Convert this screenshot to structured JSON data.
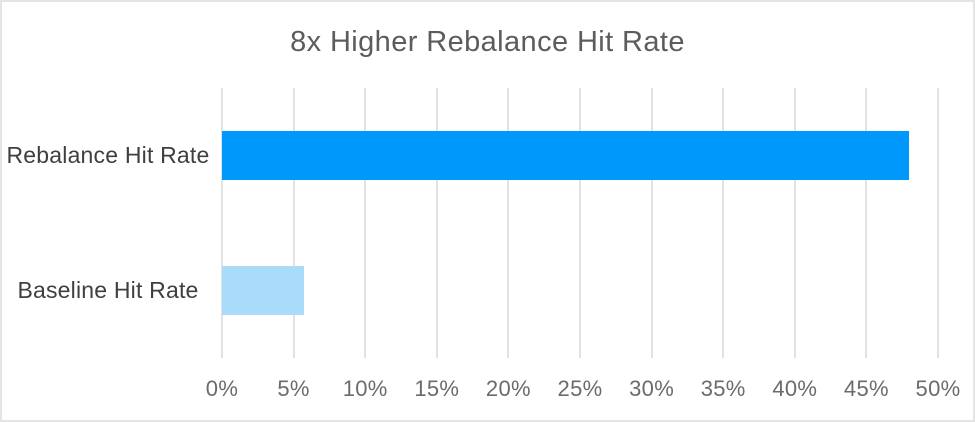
{
  "frame": {
    "background": "#ffffff",
    "border_color": "#e4e4e4"
  },
  "chart_data": {
    "type": "bar",
    "orientation": "horizontal",
    "title": "8x Higher Rebalance Hit Rate",
    "categories": [
      "Rebalance Hit Rate",
      "Baseline Hit Rate"
    ],
    "values": [
      48,
      5.7
    ],
    "value_unit": "%",
    "series_colors": [
      "#0099fb",
      "#a9dbfb"
    ],
    "xlabel": "",
    "ylabel": "",
    "x_min": 0,
    "x_max": 50,
    "x_tick_step": 5,
    "x_tick_labels": [
      "0%",
      "5%",
      "10%",
      "15%",
      "20%",
      "25%",
      "30%",
      "35%",
      "40%",
      "45%",
      "50%"
    ],
    "grid": "vertical",
    "gridline_color": "#e2e2e2",
    "legend_position": "none",
    "title_color": "#5c5c5c",
    "category_label_color": "#3f3f3f",
    "tick_label_color": "#6b6b6b"
  }
}
